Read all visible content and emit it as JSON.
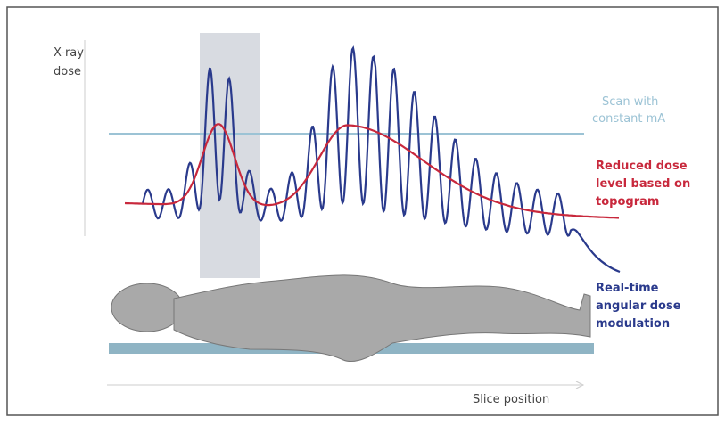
{
  "labels": {
    "y_axis": [
      "X-ray",
      "dose"
    ],
    "constant": [
      "Scan with",
      "constant mA"
    ],
    "reduced": [
      "Reduced dose",
      "level based on",
      "topogram"
    ],
    "realtime": [
      "Real-time",
      "angular dose",
      "modulation"
    ],
    "x_axis": "Slice position"
  }
}
